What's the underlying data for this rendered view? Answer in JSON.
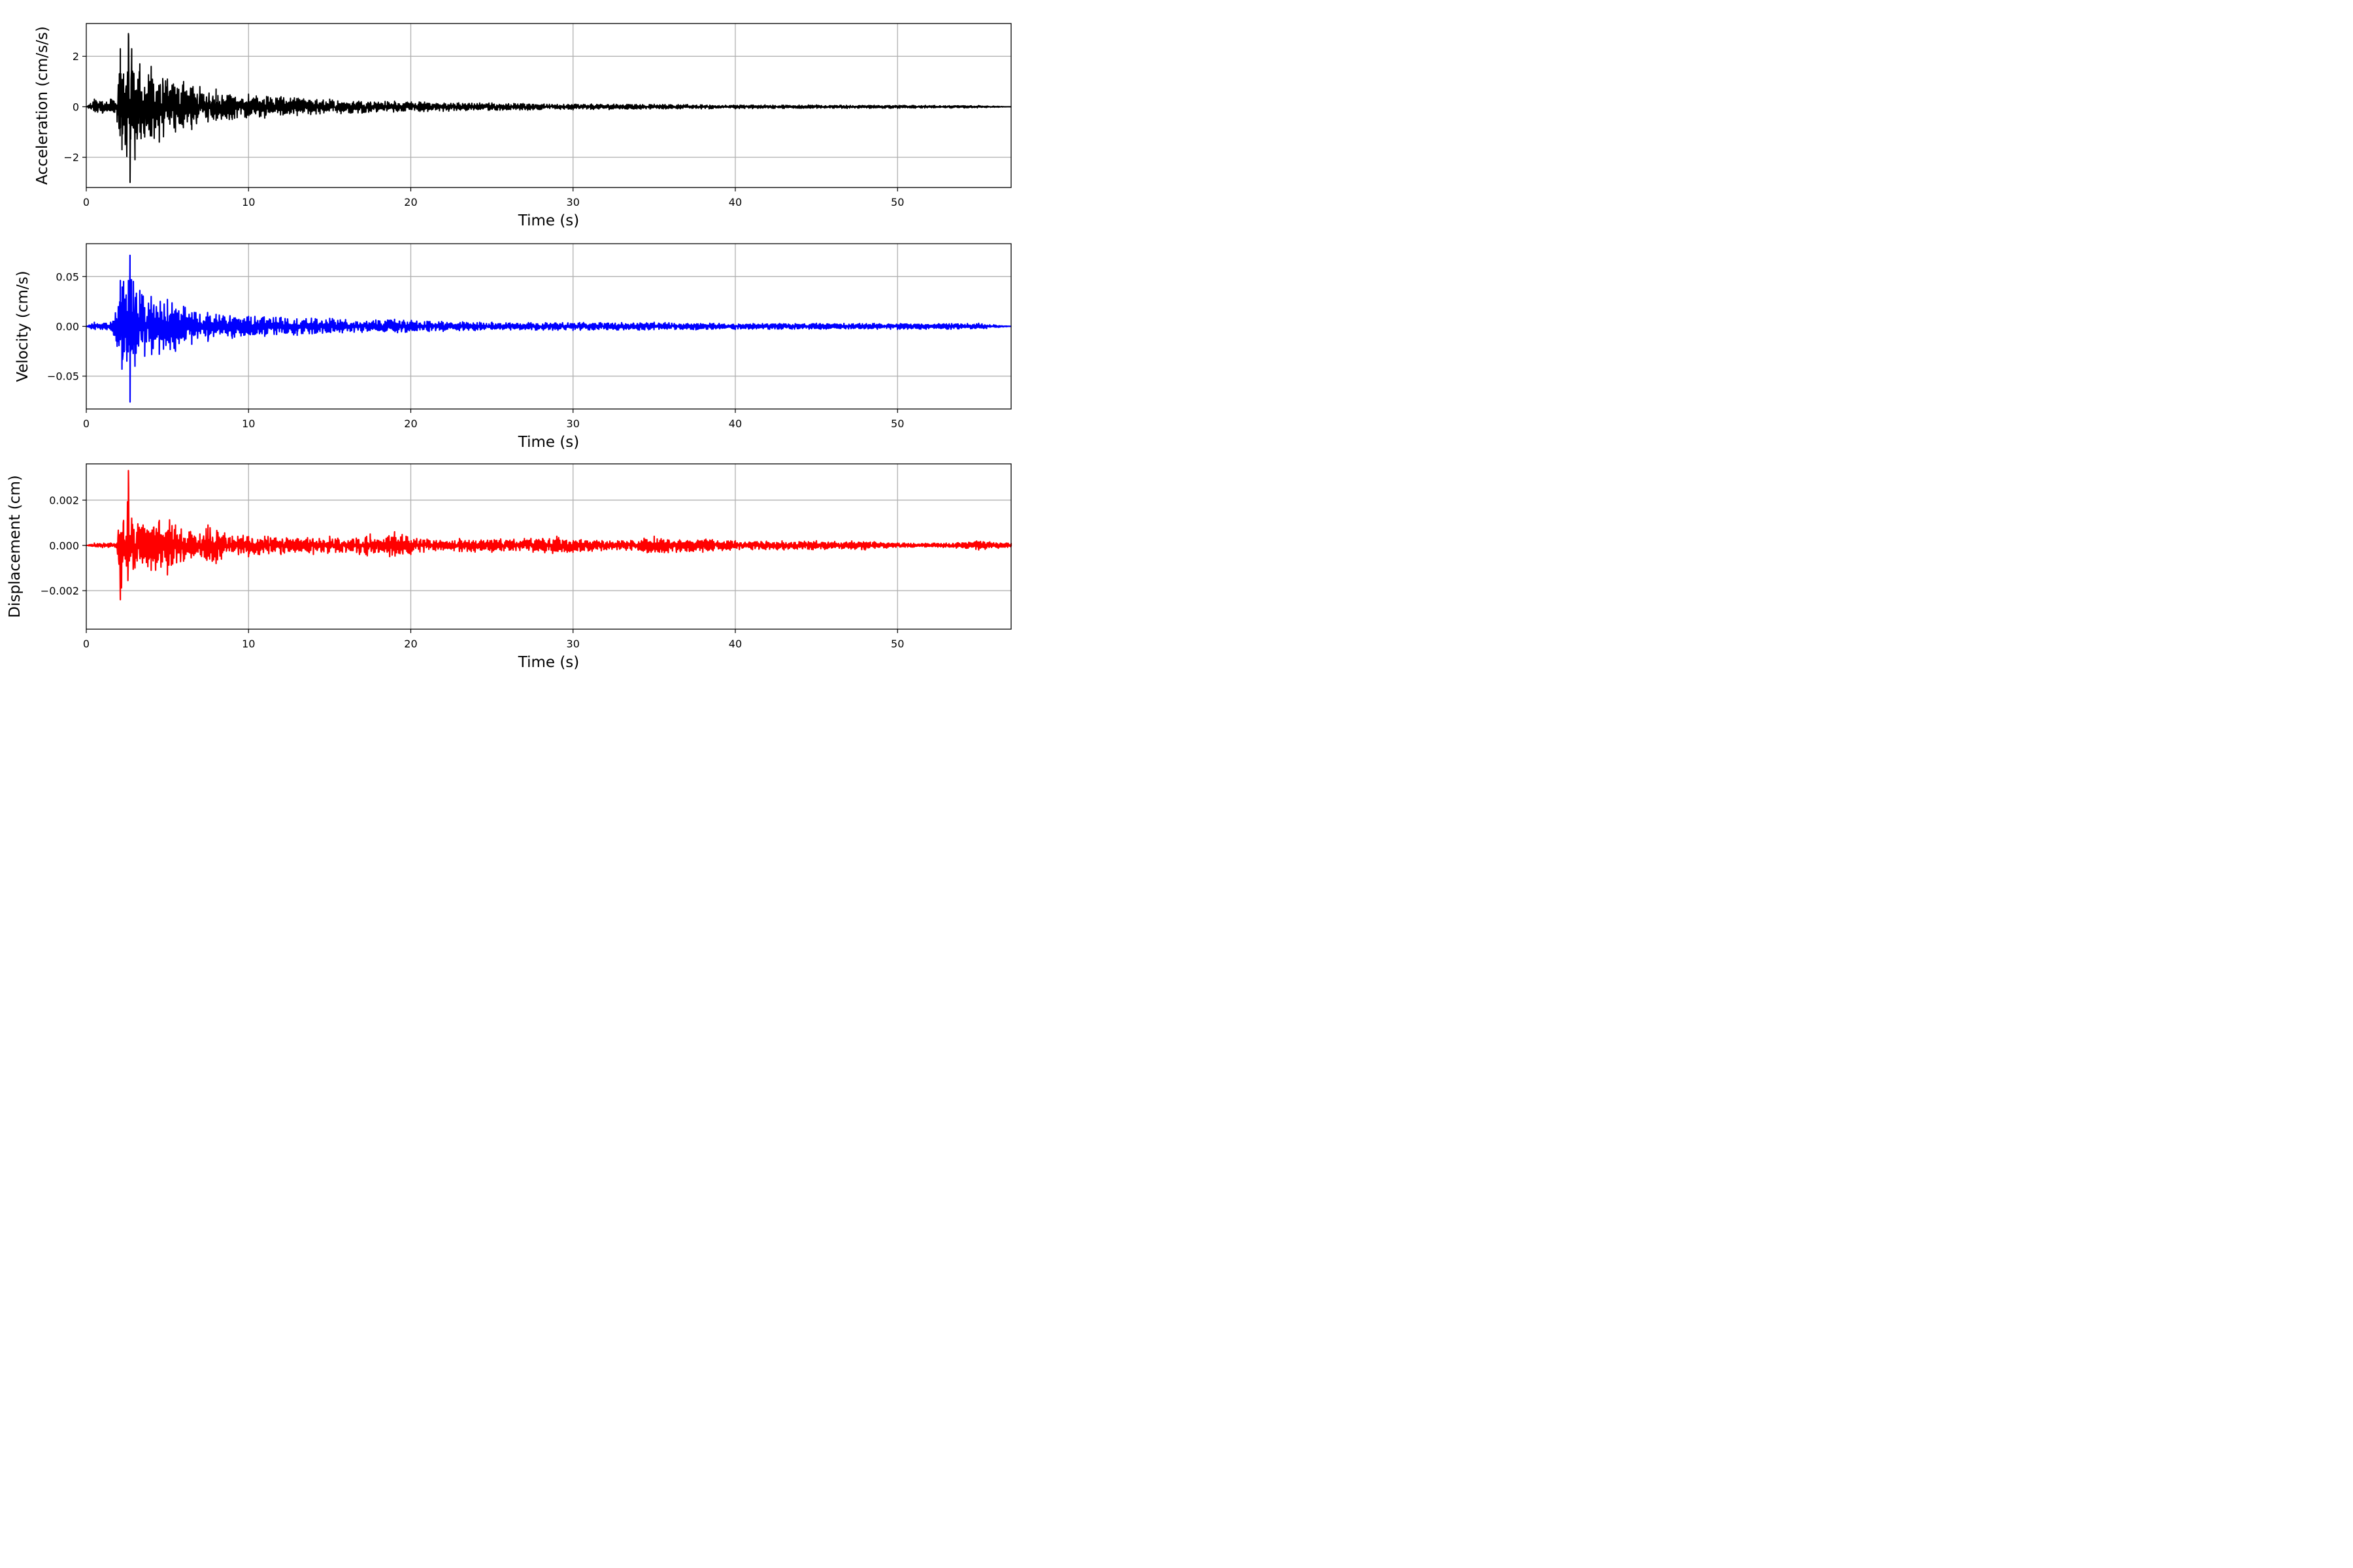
{
  "chart_data": [
    {
      "type": "line",
      "title": "",
      "xlabel": "Time (s)",
      "ylabel": "Acceleration (cm/s/s)",
      "xlim": [
        0,
        57
      ],
      "ylim": [
        -3.2,
        3.3
      ],
      "grid": true,
      "x_ticks": [
        {
          "value": 0,
          "label": "0"
        },
        {
          "value": 10,
          "label": "10"
        },
        {
          "value": 20,
          "label": "20"
        },
        {
          "value": 30,
          "label": "30"
        },
        {
          "value": 40,
          "label": "40"
        },
        {
          "value": 50,
          "label": "50"
        }
      ],
      "y_ticks": [
        {
          "value": -2,
          "label": "−2"
        },
        {
          "value": 0,
          "label": "0"
        },
        {
          "value": 2,
          "label": "2"
        }
      ],
      "series": [
        {
          "color": "#000000",
          "x": [
            0,
            0.5,
            1,
            1.5,
            1.9,
            2.1,
            2.2,
            2.3,
            2.4,
            2.6,
            2.7,
            2.8,
            3.0,
            3.3,
            3.6,
            4.0,
            4.5,
            5.0,
            5.5,
            6.0,
            6.5,
            7.0,
            7.5,
            8.0,
            9.0,
            10,
            11,
            12,
            13,
            15,
            17,
            19,
            22,
            25,
            30,
            35,
            40,
            45,
            50,
            55,
            57
          ],
          "y": [
            0,
            0.3,
            -0.25,
            0.3,
            -0.6,
            2.3,
            -1.7,
            1.3,
            -1.5,
            2.9,
            -3.0,
            2.3,
            -2.1,
            1.7,
            -1.2,
            1.6,
            -1.4,
            1.1,
            -1.0,
            1.0,
            -0.9,
            0.8,
            -0.6,
            0.7,
            -0.5,
            0.5,
            -0.45,
            0.4,
            -0.35,
            0.3,
            -0.25,
            0.22,
            -0.18,
            0.15,
            -0.12,
            0.1,
            -0.08,
            0.07,
            -0.06,
            0.05,
            0
          ]
        }
      ]
    },
    {
      "type": "line",
      "title": "",
      "xlabel": "Time (s)",
      "ylabel": "Velocity (cm/s)",
      "xlim": [
        0,
        57
      ],
      "ylim": [
        -0.083,
        0.083
      ],
      "grid": true,
      "x_ticks": [
        {
          "value": 0,
          "label": "0"
        },
        {
          "value": 10,
          "label": "10"
        },
        {
          "value": 20,
          "label": "20"
        },
        {
          "value": 30,
          "label": "30"
        },
        {
          "value": 40,
          "label": "40"
        },
        {
          "value": 50,
          "label": "50"
        }
      ],
      "y_ticks": [
        {
          "value": -0.05,
          "label": "−0.05"
        },
        {
          "value": 0,
          "label": "0.00"
        },
        {
          "value": 0.05,
          "label": "0.05"
        }
      ],
      "series": [
        {
          "color": "#0000ff",
          "x": [
            0,
            0.5,
            1,
            1.5,
            1.9,
            2.1,
            2.2,
            2.3,
            2.5,
            2.6,
            2.7,
            2.9,
            3.0,
            3.3,
            3.6,
            4.0,
            4.5,
            5.0,
            5.5,
            6.0,
            6.5,
            7.0,
            7.5,
            8.0,
            9.0,
            10,
            11,
            12,
            13,
            15,
            17,
            19,
            22,
            25,
            30,
            35,
            40,
            45,
            50,
            55,
            57
          ],
          "y": [
            0,
            0.004,
            -0.003,
            0.004,
            -0.02,
            0.046,
            -0.043,
            0.045,
            -0.035,
            0.046,
            -0.076,
            0.045,
            -0.04,
            0.036,
            -0.03,
            0.03,
            -0.028,
            0.027,
            -0.025,
            0.02,
            -0.018,
            0.012,
            -0.015,
            0.012,
            -0.012,
            0.01,
            -0.01,
            0.009,
            -0.009,
            0.008,
            -0.006,
            0.007,
            -0.005,
            0.004,
            -0.004,
            0.004,
            -0.003,
            0.003,
            -0.003,
            0.003,
            0
          ]
        }
      ]
    },
    {
      "type": "line",
      "title": "",
      "xlabel": "Time (s)",
      "ylabel": "Displacement (cm)",
      "xlim": [
        0,
        57
      ],
      "ylim": [
        -0.0037,
        0.0036
      ],
      "grid": true,
      "x_ticks": [
        {
          "value": 0,
          "label": "0"
        },
        {
          "value": 10,
          "label": "10"
        },
        {
          "value": 20,
          "label": "20"
        },
        {
          "value": 30,
          "label": "30"
        },
        {
          "value": 40,
          "label": "40"
        },
        {
          "value": 50,
          "label": "50"
        }
      ],
      "y_ticks": [
        {
          "value": -0.002,
          "label": "−0.002"
        },
        {
          "value": 0,
          "label": "0.000"
        },
        {
          "value": 0.002,
          "label": "0.002"
        }
      ],
      "series": [
        {
          "color": "#ff0000",
          "x": [
            0,
            0.5,
            1,
            1.5,
            1.9,
            2.1,
            2.3,
            2.4,
            2.6,
            2.7,
            2.8,
            3.0,
            3.5,
            4.0,
            4.5,
            5.0,
            5.5,
            6.0,
            7.0,
            7.5,
            8.0,
            9.0,
            10,
            11,
            12,
            13,
            14,
            15,
            16,
            17.5,
            18,
            19,
            20,
            22,
            23,
            25,
            27,
            29,
            30,
            33,
            35,
            38,
            40,
            43,
            45,
            48,
            50,
            53,
            55,
            57
          ],
          "y": [
            0,
            0.0001,
            -0.0001,
            0.0001,
            0.0001,
            -0.0024,
            0.0011,
            -0.0006,
            0.0033,
            -0.0004,
            0.0012,
            -0.001,
            0.0009,
            -0.0011,
            0.0011,
            -0.0013,
            0.0009,
            -0.0007,
            0.0005,
            0.0009,
            -0.0008,
            0.0004,
            -0.0005,
            0.0004,
            -0.0004,
            0.0003,
            -0.0004,
            0.0004,
            -0.0003,
            0.0005,
            -0.0003,
            0.0006,
            -0.0004,
            -0.0002,
            0.0003,
            -0.0003,
            0.0003,
            0.0004,
            -0.0003,
            0.0002,
            0.0004,
            -0.0003,
            0.0002,
            -0.0002,
            0.0002,
            -0.0002,
            0.0001,
            0.0001,
            -0.0002,
            0.0001
          ]
        }
      ]
    }
  ]
}
